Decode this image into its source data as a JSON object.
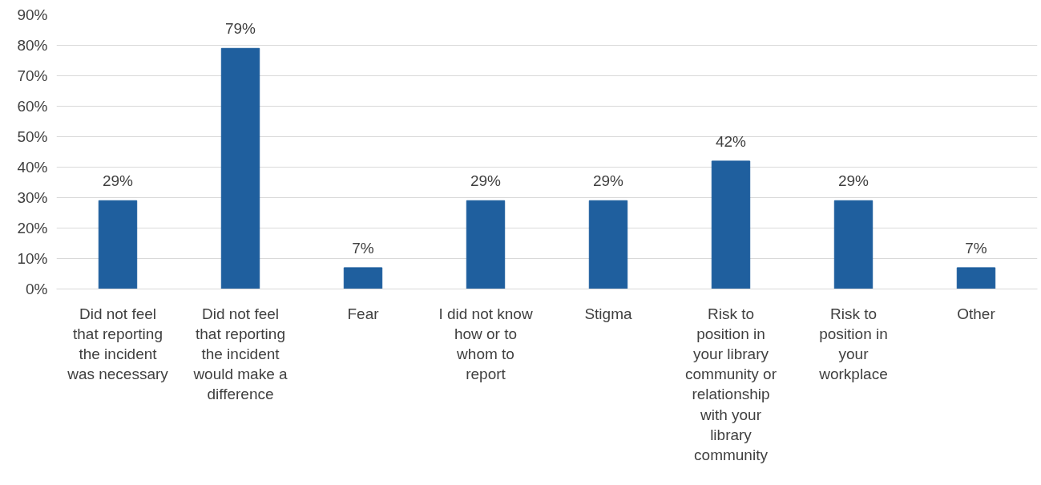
{
  "chart_data": {
    "type": "bar",
    "categories": [
      "Did not feel\nthat reporting\nthe incident\nwas necessary",
      "Did not feel\nthat reporting\nthe incident\nwould make a\ndifference",
      "Fear",
      "I did not know\nhow or to\nwhom to\nreport",
      "Stigma",
      "Risk to\nposition in\nyour library\ncommunity or\nrelationship\nwith your\nlibrary\ncommunity",
      "Risk to\nposition in\nyour\nworkplace",
      "Other"
    ],
    "values": [
      29,
      79,
      7,
      29,
      29,
      42,
      29,
      7
    ],
    "color": "#1f5f9e",
    "value_labels": [
      "29%",
      "79%",
      "7%",
      "29%",
      "29%",
      "42%",
      "29%",
      "7%"
    ],
    "ylim": [
      0,
      90
    ],
    "yticks": [
      {
        "value": 0,
        "label": "0%"
      },
      {
        "value": 10,
        "label": "10%"
      },
      {
        "value": 20,
        "label": "20%"
      },
      {
        "value": 30,
        "label": "30%"
      },
      {
        "value": 40,
        "label": "40%"
      },
      {
        "value": 50,
        "label": "50%"
      },
      {
        "value": 60,
        "label": "60%"
      },
      {
        "value": 70,
        "label": "70%"
      },
      {
        "value": 80,
        "label": "80%"
      },
      {
        "value": 90,
        "label": "90%"
      }
    ],
    "grid": "y"
  }
}
